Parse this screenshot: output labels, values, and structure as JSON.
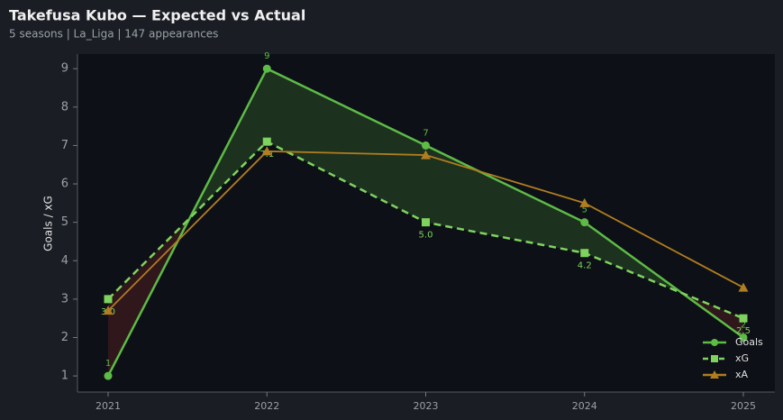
{
  "chart_data": {
    "type": "line",
    "title": "Takefusa Kubo — Expected vs Actual",
    "subtitle": "5 seasons | La_Liga | 147 appearances",
    "y_label": "Goals / xG",
    "categories": [
      "2021",
      "2022",
      "2023",
      "2024",
      "2025"
    ],
    "series": [
      {
        "name": "Goals",
        "color": "#5dbb46",
        "marker": "circle",
        "dash": false,
        "values": [
          1,
          9,
          7,
          5,
          2
        ],
        "value_labels": [
          "1",
          "9",
          "7",
          "5",
          "2"
        ]
      },
      {
        "name": "xG",
        "color": "#7ed35f",
        "marker": "square",
        "dash": true,
        "values": [
          3.0,
          7.1,
          5.0,
          4.2,
          2.5
        ],
        "value_labels": [
          "3.0",
          "7.1",
          "5.0",
          "4.2",
          "2.5"
        ]
      },
      {
        "name": "xA",
        "color": "#b07d20",
        "marker": "triangle",
        "dash": false,
        "values": [
          2.7,
          6.85,
          6.75,
          5.5,
          3.3
        ]
      }
    ],
    "ylim": [
      0.58,
      9.38
    ],
    "yticks": [
      1,
      2,
      3,
      4,
      5,
      6,
      7,
      8,
      9
    ],
    "legend": "lower right"
  }
}
